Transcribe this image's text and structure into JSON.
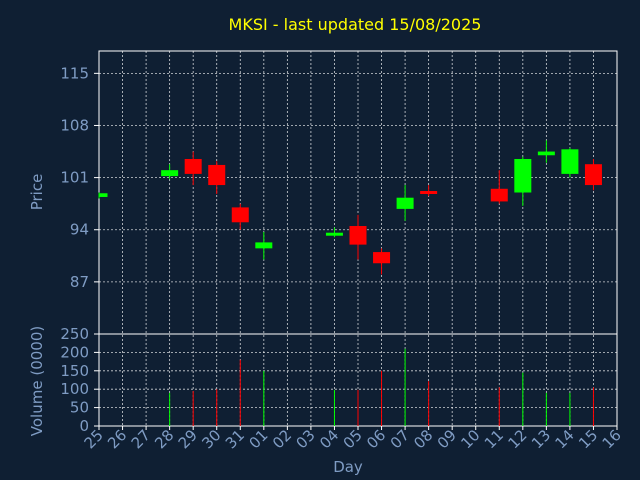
{
  "chart_data": {
    "type": "candlestick",
    "title": "MKSI - last updated 15/08/2025",
    "xlabel": "Day",
    "ylabel_price": "Price",
    "ylabel_volume": "Volume (0000)",
    "price_yticks": [
      87,
      94,
      101,
      108,
      115
    ],
    "price_ylim": [
      80,
      118
    ],
    "volume_yticks": [
      0,
      50,
      100,
      150,
      200,
      250
    ],
    "volume_ylim": [
      0,
      250
    ],
    "grid": true,
    "colors": {
      "up": "#00ff00",
      "down": "#ff0000",
      "grid": "#ffffff",
      "axis_text": "#7f9cc4",
      "title": "#ffff00",
      "background": "#0f1f33"
    },
    "days": [
      "25",
      "26",
      "27",
      "28",
      "29",
      "30",
      "31",
      "01",
      "02",
      "03",
      "04",
      "05",
      "06",
      "07",
      "08",
      "09",
      "10",
      "11",
      "12",
      "13",
      "14",
      "15",
      "16"
    ],
    "candles": [
      {
        "day": "25",
        "open": 98.4,
        "high": 99.0,
        "low": 98.2,
        "close": 98.9,
        "volume": 0
      },
      {
        "day": "28",
        "open": 101.2,
        "high": 102.8,
        "low": 100.8,
        "close": 102.0,
        "volume": 90
      },
      {
        "day": "29",
        "open": 103.5,
        "high": 104.5,
        "low": 100.0,
        "close": 101.5,
        "volume": 95
      },
      {
        "day": "30",
        "open": 102.7,
        "high": 103.2,
        "low": 98.8,
        "close": 100.0,
        "volume": 100
      },
      {
        "day": "31",
        "open": 97.0,
        "high": 97.5,
        "low": 94.0,
        "close": 95.0,
        "volume": 180
      },
      {
        "day": "01",
        "open": 91.5,
        "high": 93.7,
        "low": 90.0,
        "close": 92.3,
        "volume": 150
      },
      {
        "day": "04",
        "open": 93.3,
        "high": 94.3,
        "low": 93.0,
        "close": 93.6,
        "volume": 98
      },
      {
        "day": "05",
        "open": 94.5,
        "high": 96.0,
        "low": 90.0,
        "close": 92.0,
        "volume": 98
      },
      {
        "day": "06",
        "open": 91.0,
        "high": 91.5,
        "low": 88.0,
        "close": 89.5,
        "volume": 150
      },
      {
        "day": "07",
        "open": 96.8,
        "high": 100.0,
        "low": 95.2,
        "close": 98.3,
        "volume": 210
      },
      {
        "day": "08",
        "open": 99.2,
        "high": 100.0,
        "low": 98.5,
        "close": 98.9,
        "volume": 122
      },
      {
        "day": "11",
        "open": 99.5,
        "high": 102.0,
        "low": 97.5,
        "close": 97.8,
        "volume": 105
      },
      {
        "day": "12",
        "open": 99.0,
        "high": 103.8,
        "low": 97.2,
        "close": 103.5,
        "volume": 145
      },
      {
        "day": "13",
        "open": 104.0,
        "high": 106.0,
        "low": 103.0,
        "close": 104.5,
        "volume": 90
      },
      {
        "day": "14",
        "open": 101.5,
        "high": 105.0,
        "low": 101.0,
        "close": 104.8,
        "volume": 90
      },
      {
        "day": "15",
        "open": 102.8,
        "high": 103.5,
        "low": 99.3,
        "close": 100.0,
        "volume": 105
      }
    ]
  }
}
